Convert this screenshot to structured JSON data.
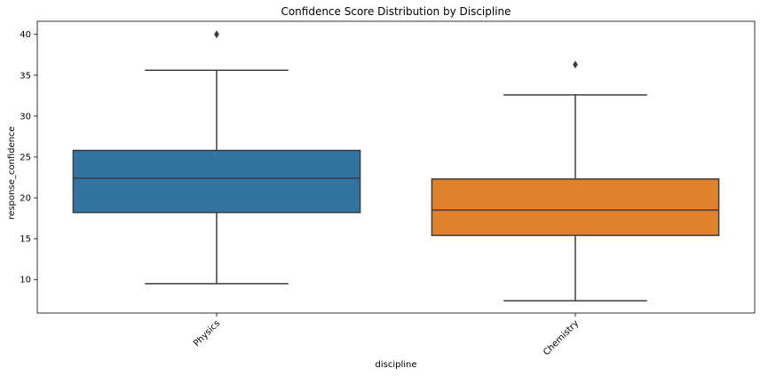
{
  "chart_data": {
    "type": "boxplot",
    "title": "Confidence Score Distribution by Discipline",
    "xlabel": "discipline",
    "ylabel": "response_confidence",
    "categories": [
      "Physics",
      "Chemistry"
    ],
    "ylim": [
      5.9,
      41.6
    ],
    "yticks": [
      10,
      15,
      20,
      25,
      30,
      35,
      40
    ],
    "boxes": [
      {
        "category": "Physics",
        "whisker_low": 9.5,
        "q1": 18.2,
        "median": 22.4,
        "q3": 25.8,
        "whisker_high": 35.6,
        "outliers": [
          40.0
        ],
        "color": "#3274a1"
      },
      {
        "category": "Chemistry",
        "whisker_low": 7.4,
        "q1": 15.4,
        "median": 18.5,
        "q3": 22.3,
        "whisker_high": 32.6,
        "outliers": [
          36.3
        ],
        "color": "#e1812c"
      }
    ],
    "grid": false
  }
}
